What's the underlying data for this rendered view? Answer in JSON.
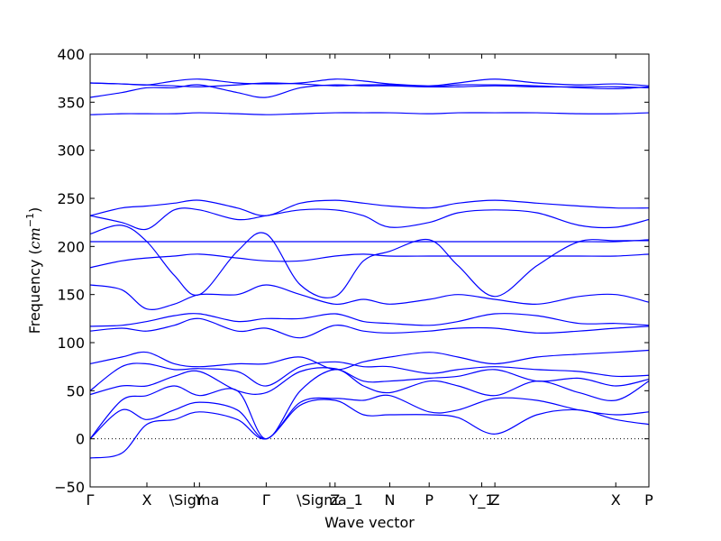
{
  "chart_data": {
    "type": "line",
    "xlabel": "Wave vector",
    "ylabel": "Frequency",
    "ylabel_unit": "cm",
    "ylabel_unit_exp": "−1",
    "ylim": [
      -50,
      400
    ],
    "yticks": [
      -50,
      0,
      50,
      100,
      150,
      200,
      250,
      300,
      350,
      400
    ],
    "xlim": [
      0,
      10
    ],
    "xticks": [
      {
        "x": 0.0,
        "label": "Γ"
      },
      {
        "x": 1.08,
        "label": "X"
      },
      {
        "x": 1.98,
        "label": "\\Sigma"
      },
      {
        "x": 2.08,
        "label": "Y"
      },
      {
        "x": 3.35,
        "label": "Γ"
      },
      {
        "x": 4.56,
        "label": "\\Sigma_1"
      },
      {
        "x": 4.66,
        "label": "Z"
      },
      {
        "x": 5.7,
        "label": "N"
      },
      {
        "x": 6.45,
        "label": "P"
      },
      {
        "x": 7.45,
        "label": "Y_1"
      },
      {
        "x": 7.7,
        "label": "Z"
      },
      {
        "x": 10.0,
        "label": "X"
      },
      {
        "x": 10.63,
        "label": "P"
      }
    ],
    "grid": false,
    "zero_line": {
      "y": 0,
      "style": "dotted"
    },
    "line_color": "#0000ff",
    "series": [
      {
        "x": [
          0,
          0.6,
          1.08,
          1.6,
          2.08,
          2.8,
          3.35,
          4.0,
          4.66,
          5.2,
          5.7,
          6.45,
          7.0,
          7.7,
          8.5,
          9.3,
          10.0,
          10.63
        ],
        "values": [
          -20,
          -15,
          15,
          20,
          28,
          20,
          0,
          35,
          40,
          25,
          25,
          25,
          22,
          5,
          25,
          30,
          20,
          15
        ]
      },
      {
        "x": [
          0,
          0.6,
          1.08,
          1.6,
          2.08,
          2.8,
          3.35,
          4.0,
          4.66,
          5.2,
          5.7,
          6.45,
          7.0,
          7.7,
          8.5,
          9.3,
          10.0,
          10.63
        ],
        "values": [
          0,
          30,
          20,
          30,
          38,
          30,
          0,
          38,
          42,
          40,
          45,
          28,
          30,
          42,
          40,
          30,
          25,
          28
        ]
      },
      {
        "x": [
          0,
          0.6,
          1.08,
          1.6,
          2.08,
          2.8,
          3.35,
          4.0,
          4.66,
          5.2,
          5.7,
          6.45,
          7.0,
          7.7,
          8.5,
          9.3,
          10.0,
          10.63
        ],
        "values": [
          0,
          40,
          45,
          55,
          45,
          50,
          0,
          50,
          72,
          55,
          48,
          60,
          55,
          45,
          60,
          48,
          40,
          60
        ]
      },
      {
        "x": [
          0,
          0.6,
          1.08,
          1.6,
          2.08,
          2.8,
          3.35,
          4.0,
          4.66,
          5.2,
          5.7,
          6.45,
          7.0,
          7.7,
          8.5,
          9.3,
          10.0,
          10.63
        ],
        "values": [
          46,
          55,
          55,
          65,
          70,
          50,
          48,
          70,
          73,
          60,
          60,
          63,
          65,
          72,
          60,
          63,
          55,
          62
        ]
      },
      {
        "x": [
          0,
          0.6,
          1.08,
          1.6,
          2.08,
          2.8,
          3.35,
          4.0,
          4.66,
          5.2,
          5.7,
          6.45,
          7.0,
          7.7,
          8.5,
          9.3,
          10.0,
          10.63
        ],
        "values": [
          50,
          75,
          78,
          72,
          73,
          70,
          55,
          75,
          80,
          75,
          75,
          68,
          72,
          75,
          72,
          70,
          65,
          66
        ]
      },
      {
        "x": [
          0,
          0.6,
          1.08,
          1.6,
          2.08,
          2.8,
          3.35,
          4.0,
          4.66,
          5.2,
          5.7,
          6.45,
          7.0,
          7.7,
          8.5,
          9.3,
          10.0,
          10.63
        ],
        "values": [
          78,
          85,
          90,
          78,
          75,
          78,
          78,
          85,
          72,
          80,
          85,
          90,
          85,
          78,
          85,
          88,
          90,
          92
        ]
      },
      {
        "x": [
          0,
          0.6,
          1.08,
          1.6,
          2.08,
          2.8,
          3.35,
          4.0,
          4.66,
          5.2,
          5.7,
          6.45,
          7.0,
          7.7,
          8.5,
          9.3,
          10.0,
          10.63
        ],
        "values": [
          112,
          115,
          112,
          118,
          125,
          112,
          115,
          105,
          118,
          112,
          110,
          112,
          115,
          115,
          110,
          112,
          115,
          117
        ]
      },
      {
        "x": [
          0,
          0.6,
          1.08,
          1.6,
          2.08,
          2.8,
          3.35,
          4.0,
          4.66,
          5.2,
          5.7,
          6.45,
          7.0,
          7.7,
          8.5,
          9.3,
          10.0,
          10.63
        ],
        "values": [
          117,
          118,
          122,
          128,
          130,
          122,
          125,
          125,
          130,
          122,
          120,
          118,
          122,
          130,
          128,
          120,
          120,
          118
        ]
      },
      {
        "x": [
          0,
          0.6,
          1.08,
          1.6,
          2.08,
          2.8,
          3.35,
          4.0,
          4.66,
          5.2,
          5.7,
          6.45,
          7.0,
          7.7,
          8.5,
          9.3,
          10.0,
          10.63
        ],
        "values": [
          160,
          155,
          135,
          140,
          150,
          150,
          160,
          150,
          140,
          145,
          140,
          145,
          150,
          145,
          140,
          148,
          150,
          142
        ]
      },
      {
        "x": [
          0,
          0.6,
          1.08,
          1.6,
          2.08,
          2.8,
          3.35,
          4.0,
          4.66,
          5.2,
          5.7,
          6.45,
          7.0,
          7.7,
          8.5,
          9.3,
          10.0,
          10.63
        ],
        "values": [
          178,
          185,
          188,
          190,
          192,
          188,
          185,
          185,
          190,
          192,
          190,
          190,
          190,
          190,
          190,
          190,
          190,
          192
        ]
      },
      {
        "x": [
          0,
          0.6,
          1.08,
          1.6,
          2.08,
          2.8,
          3.35,
          4.0,
          4.66,
          5.2,
          5.7,
          6.45,
          7.0,
          7.7,
          8.5,
          9.3,
          10.0,
          10.63
        ],
        "values": [
          205,
          205,
          205,
          205,
          205,
          205,
          205,
          205,
          205,
          205,
          205,
          205,
          205,
          205,
          205,
          205,
          205,
          207
        ]
      },
      {
        "x": [
          0,
          0.6,
          1.08,
          1.6,
          2.08,
          2.8,
          3.35,
          4.0,
          4.66,
          5.2,
          5.7,
          6.45,
          7.0,
          7.7,
          8.5,
          9.3,
          10.0,
          10.63
        ],
        "values": [
          213,
          222,
          205,
          170,
          150,
          195,
          213,
          160,
          148,
          185,
          195,
          207,
          180,
          148,
          180,
          205,
          206,
          206
        ]
      },
      {
        "x": [
          0,
          0.6,
          1.08,
          1.6,
          2.08,
          2.8,
          3.35,
          4.0,
          4.66,
          5.2,
          5.7,
          6.45,
          7.0,
          7.7,
          8.5,
          9.3,
          10.0,
          10.63
        ],
        "values": [
          232,
          225,
          218,
          238,
          238,
          228,
          232,
          238,
          238,
          232,
          220,
          225,
          235,
          238,
          235,
          222,
          220,
          228
        ]
      },
      {
        "x": [
          0,
          0.6,
          1.08,
          1.6,
          2.08,
          2.8,
          3.35,
          4.0,
          4.66,
          5.2,
          5.7,
          6.45,
          7.0,
          7.7,
          8.5,
          9.3,
          10.0,
          10.63
        ],
        "values": [
          232,
          240,
          242,
          245,
          248,
          240,
          232,
          245,
          248,
          245,
          242,
          240,
          245,
          248,
          245,
          242,
          240,
          240
        ]
      },
      {
        "x": [
          0,
          0.6,
          1.08,
          1.6,
          2.08,
          2.8,
          3.35,
          4.0,
          4.66,
          5.2,
          5.7,
          6.45,
          7.0,
          7.7,
          8.5,
          9.3,
          10.0,
          10.63
        ],
        "values": [
          337,
          338,
          338,
          338,
          339,
          338,
          337,
          338,
          339,
          339,
          339,
          338,
          339,
          339,
          339,
          338,
          338,
          339
        ]
      },
      {
        "x": [
          0,
          0.6,
          1.08,
          1.6,
          2.08,
          2.8,
          3.35,
          4.0,
          4.66,
          5.2,
          5.7,
          6.45,
          7.0,
          7.7,
          8.5,
          9.3,
          10.0,
          10.63
        ],
        "values": [
          355,
          360,
          365,
          365,
          368,
          360,
          355,
          365,
          368,
          367,
          367,
          366,
          368,
          368,
          367,
          365,
          364,
          366
        ]
      },
      {
        "x": [
          0,
          0.6,
          1.08,
          1.6,
          2.08,
          2.8,
          3.35,
          4.0,
          4.66,
          5.2,
          5.7,
          6.45,
          7.0,
          7.7,
          8.5,
          9.3,
          10.0,
          10.63
        ],
        "values": [
          370,
          369,
          368,
          372,
          374,
          370,
          369,
          370,
          374,
          372,
          369,
          367,
          370,
          374,
          370,
          368,
          369,
          367
        ]
      },
      {
        "x": [
          0,
          0.6,
          1.08,
          1.6,
          2.08,
          2.8,
          3.35,
          4.0,
          4.66,
          5.2,
          5.7,
          6.45,
          7.0,
          7.7,
          8.5,
          9.3,
          10.0,
          10.63
        ],
        "values": [
          370,
          369,
          368,
          367,
          366,
          368,
          370,
          369,
          367,
          368,
          368,
          366,
          366,
          367,
          366,
          366,
          366,
          365
        ]
      }
    ]
  }
}
